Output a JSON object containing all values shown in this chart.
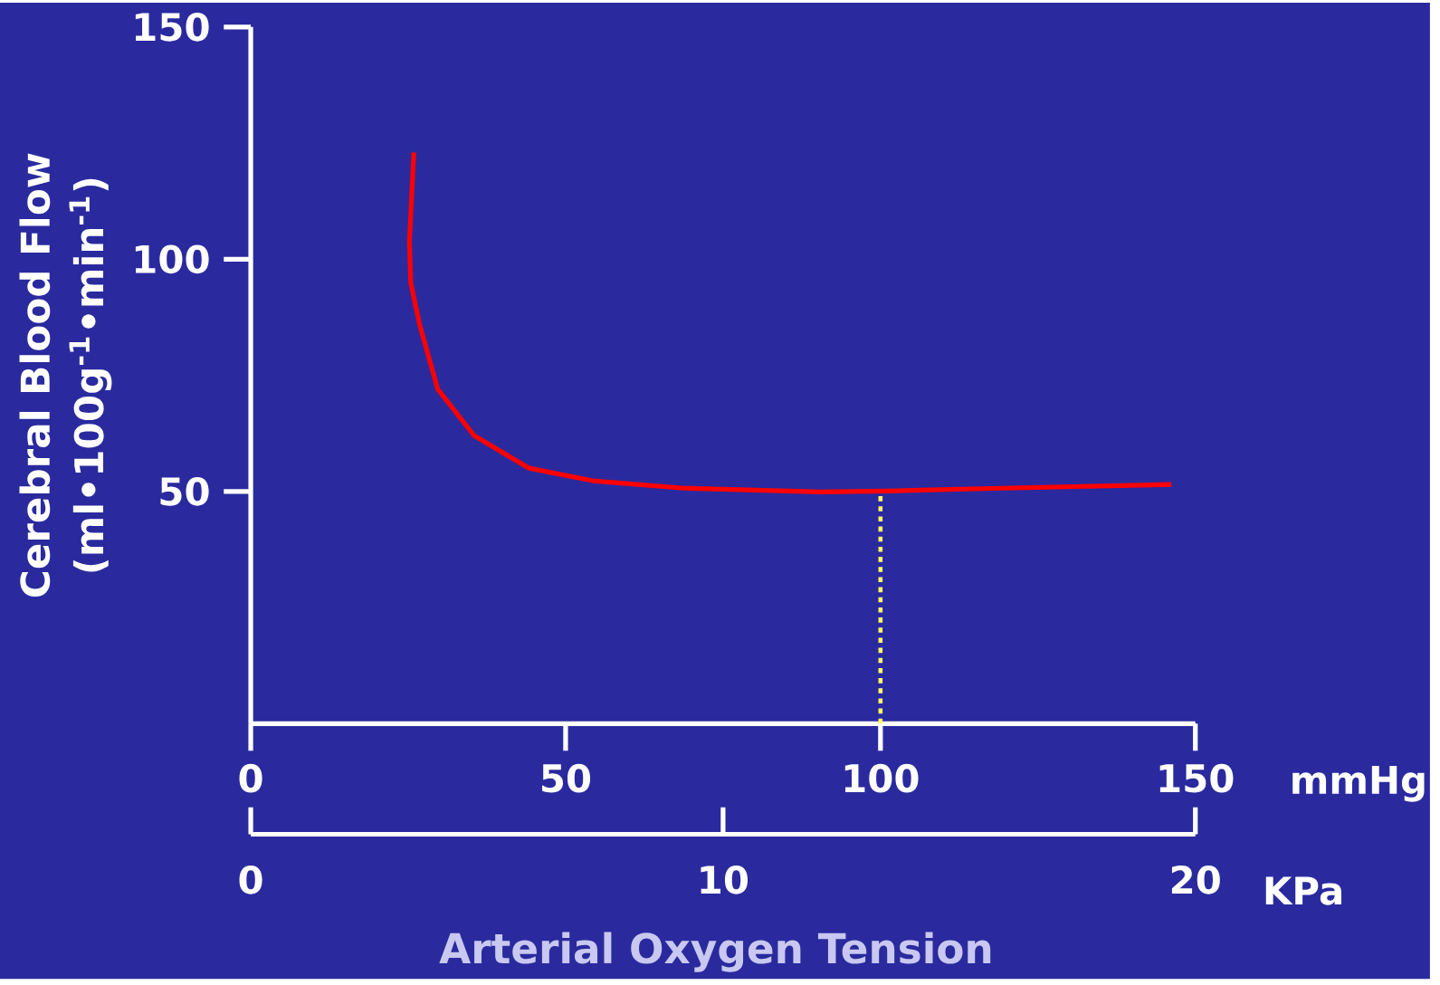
{
  "chart_data": {
    "type": "line",
    "xlabel": "Arterial Oxygen Tension",
    "ylabel": "Cerebral Blood Flow (ml•100g$^{-1}$•min$^{-1}$)",
    "x2label": "KPa",
    "annotations": [
      "mmHg"
    ],
    "xlim": [
      0,
      150
    ],
    "ylim": [
      0,
      150
    ],
    "xticks": [
      0,
      50,
      100,
      150
    ],
    "yticks": [
      50,
      100,
      150
    ],
    "x2lim": [
      0,
      20
    ],
    "x2ticks": [
      0,
      10,
      20
    ],
    "series": [
      {
        "color": "#ff0000",
        "line_style": "solid",
        "x": [
          25.9,
          25.2,
          25.4,
          26.8,
          29.7,
          35.5,
          44.2,
          54.3,
          68.8,
          90.5,
          101.3,
          119.4,
          146.2
        ],
        "values": [
          123,
          103.8,
          95,
          86,
          72,
          62,
          55,
          52.3,
          50.7,
          49.9,
          50.1,
          50.7,
          51.5
        ]
      },
      {
        "color": "#ffff66",
        "line_style": "dotted",
        "x": [
          100,
          100
        ],
        "values": [
          0,
          50
        ]
      }
    ]
  }
}
